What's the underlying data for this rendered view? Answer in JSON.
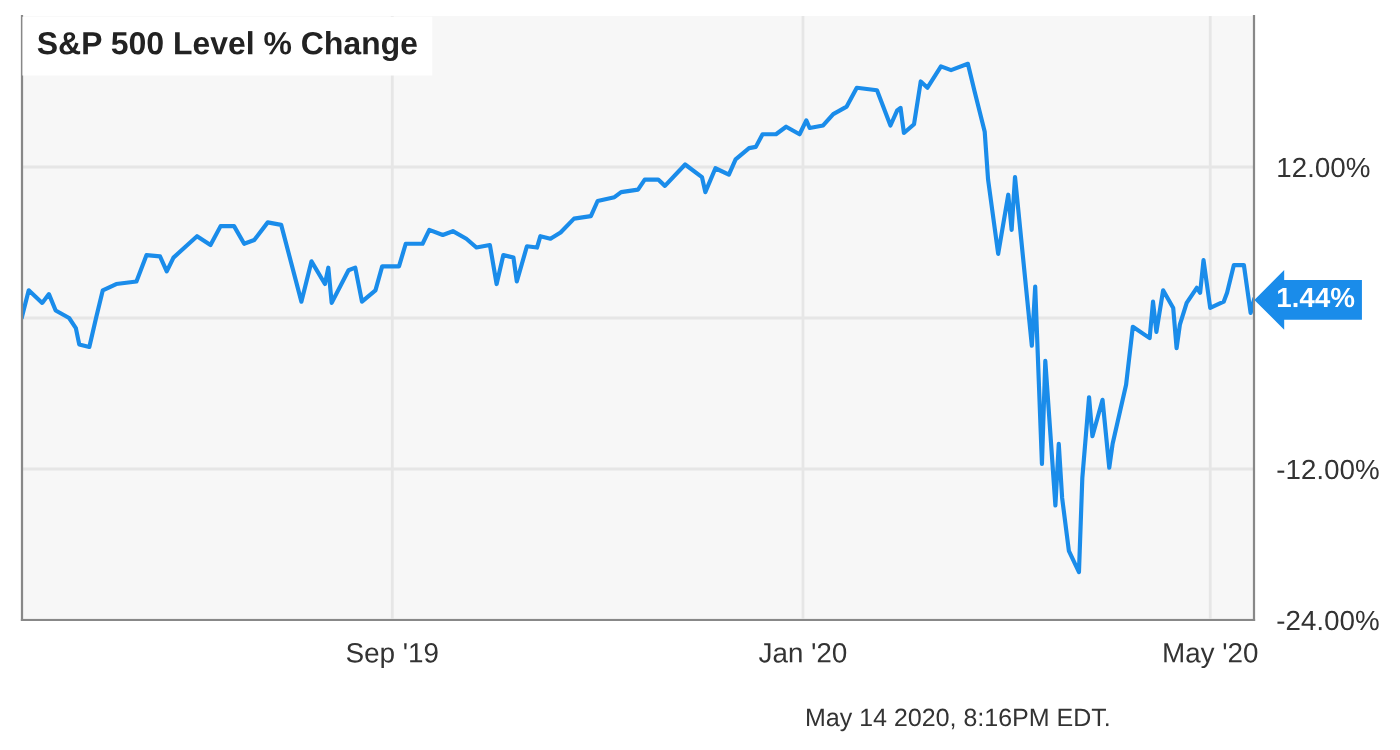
{
  "chart_data": {
    "type": "line",
    "title": "S&P 500 Level % Change",
    "x": [
      "2019-05-14",
      "2019-05-16",
      "2019-05-20",
      "2019-05-22",
      "2019-05-24",
      "2019-05-28",
      "2019-05-30",
      "2019-05-31",
      "2019-06-03",
      "2019-06-05",
      "2019-06-07",
      "2019-06-11",
      "2019-06-14",
      "2019-06-17",
      "2019-06-20",
      "2019-06-24",
      "2019-06-26",
      "2019-06-28",
      "2019-07-05",
      "2019-07-09",
      "2019-07-12",
      "2019-07-16",
      "2019-07-19",
      "2019-07-22",
      "2019-07-26",
      "2019-07-30",
      "2019-08-05",
      "2019-08-08",
      "2019-08-12",
      "2019-08-13",
      "2019-08-14",
      "2019-08-19",
      "2019-08-21",
      "2019-08-23",
      "2019-08-27",
      "2019-08-29",
      "2019-09-03",
      "2019-09-05",
      "2019-09-10",
      "2019-09-12",
      "2019-09-16",
      "2019-09-19",
      "2019-09-23",
      "2019-09-26",
      "2019-09-30",
      "2019-10-02",
      "2019-10-04",
      "2019-10-07",
      "2019-10-08",
      "2019-10-11",
      "2019-10-14",
      "2019-10-15",
      "2019-10-18",
      "2019-10-21",
      "2019-10-25",
      "2019-10-30",
      "2019-11-01",
      "2019-11-06",
      "2019-11-08",
      "2019-11-13",
      "2019-11-15",
      "2019-11-19",
      "2019-11-21",
      "2019-11-27",
      "2019-12-02",
      "2019-12-03",
      "2019-12-06",
      "2019-12-10",
      "2019-12-12",
      "2019-12-16",
      "2019-12-18",
      "2019-12-20",
      "2019-12-24",
      "2019-12-27",
      "2019-12-31",
      "2020-01-02",
      "2020-01-03",
      "2020-01-07",
      "2020-01-10",
      "2020-01-14",
      "2020-01-17",
      "2020-01-23",
      "2020-01-27",
      "2020-01-29",
      "2020-01-30",
      "2020-01-31",
      "2020-02-03",
      "2020-02-05",
      "2020-02-07",
      "2020-02-11",
      "2020-02-14",
      "2020-02-19",
      "2020-02-21",
      "2020-02-24",
      "2020-02-25",
      "2020-02-28",
      "2020-03-02",
      "2020-03-03",
      "2020-03-04",
      "2020-03-09",
      "2020-03-10",
      "2020-03-12",
      "2020-03-13",
      "2020-03-16",
      "2020-03-17",
      "2020-03-18",
      "2020-03-20",
      "2020-03-23",
      "2020-03-24",
      "2020-03-26",
      "2020-03-27",
      "2020-03-30",
      "2020-04-01",
      "2020-04-02",
      "2020-04-06",
      "2020-04-08",
      "2020-04-13",
      "2020-04-14",
      "2020-04-15",
      "2020-04-17",
      "2020-04-20",
      "2020-04-21",
      "2020-04-22",
      "2020-04-24",
      "2020-04-27",
      "2020-04-28",
      "2020-04-29",
      "2020-05-01",
      "2020-05-05",
      "2020-05-06",
      "2020-05-08",
      "2020-05-11",
      "2020-05-13",
      "2020-05-14"
    ],
    "series": [
      {
        "color": "#1a8cea",
        "values": [
          0.1,
          2.2,
          1.2,
          1.9,
          0.6,
          0.0,
          -0.8,
          -2.1,
          -2.3,
          0.0,
          2.2,
          2.7,
          2.8,
          2.9,
          5.0,
          4.9,
          3.7,
          4.8,
          6.5,
          5.8,
          7.3,
          7.3,
          5.9,
          6.2,
          7.6,
          7.4,
          1.3,
          4.5,
          2.7,
          4.0,
          1.2,
          3.8,
          4.0,
          1.3,
          2.2,
          4.1,
          4.1,
          5.9,
          5.9,
          7.0,
          6.6,
          6.9,
          6.3,
          5.6,
          5.8,
          2.7,
          5.0,
          4.8,
          2.9,
          5.7,
          5.6,
          6.5,
          6.3,
          6.8,
          7.9,
          8.1,
          9.3,
          9.6,
          10.0,
          10.2,
          11.0,
          11.0,
          10.5,
          12.2,
          11.2,
          10.0,
          11.9,
          11.4,
          12.6,
          13.5,
          13.6,
          14.6,
          14.6,
          15.2,
          14.6,
          15.7,
          15.1,
          15.3,
          16.2,
          16.8,
          18.3,
          18.1,
          15.3,
          16.5,
          16.7,
          14.7,
          15.4,
          18.8,
          18.3,
          20.0,
          19.7,
          20.2,
          18.0,
          14.8,
          11.0,
          5.1,
          9.8,
          7.0,
          11.2,
          -2.2,
          2.5,
          -11.6,
          -3.4,
          -14.9,
          -10.0,
          -14.3,
          -18.5,
          -20.2,
          -12.7,
          -6.3,
          -9.4,
          -6.5,
          -11.9,
          -10.0,
          -5.3,
          -0.7,
          -1.6,
          1.3,
          -1.1,
          2.2,
          0.8,
          -2.4,
          -0.5,
          1.2,
          2.4,
          2.0,
          4.6,
          0.8,
          1.3,
          2.0,
          4.2,
          4.2,
          0.4,
          1.44
        ]
      }
    ],
    "xlim": [
      "2019-05-14",
      "2020-05-14"
    ],
    "xticks": [
      {
        "value": "2019-09-01",
        "label": "Sep '19"
      },
      {
        "value": "2020-01-01",
        "label": "Jan '20"
      },
      {
        "value": "2020-05-01",
        "label": "May '20"
      }
    ],
    "ylim": [
      -24,
      24
    ],
    "yticks": [
      {
        "value": -24,
        "label": "-24.00%"
      },
      {
        "value": -12,
        "label": "-12.00%"
      },
      {
        "value": 0,
        "label": null
      },
      {
        "value": 12,
        "label": "12.00%"
      }
    ],
    "grid": true,
    "annotations": [
      {
        "text": "1.44%",
        "x": "2020-05-14",
        "y": 1.44
      },
      "May 14 2020, 8:16PM EDT."
    ]
  }
}
